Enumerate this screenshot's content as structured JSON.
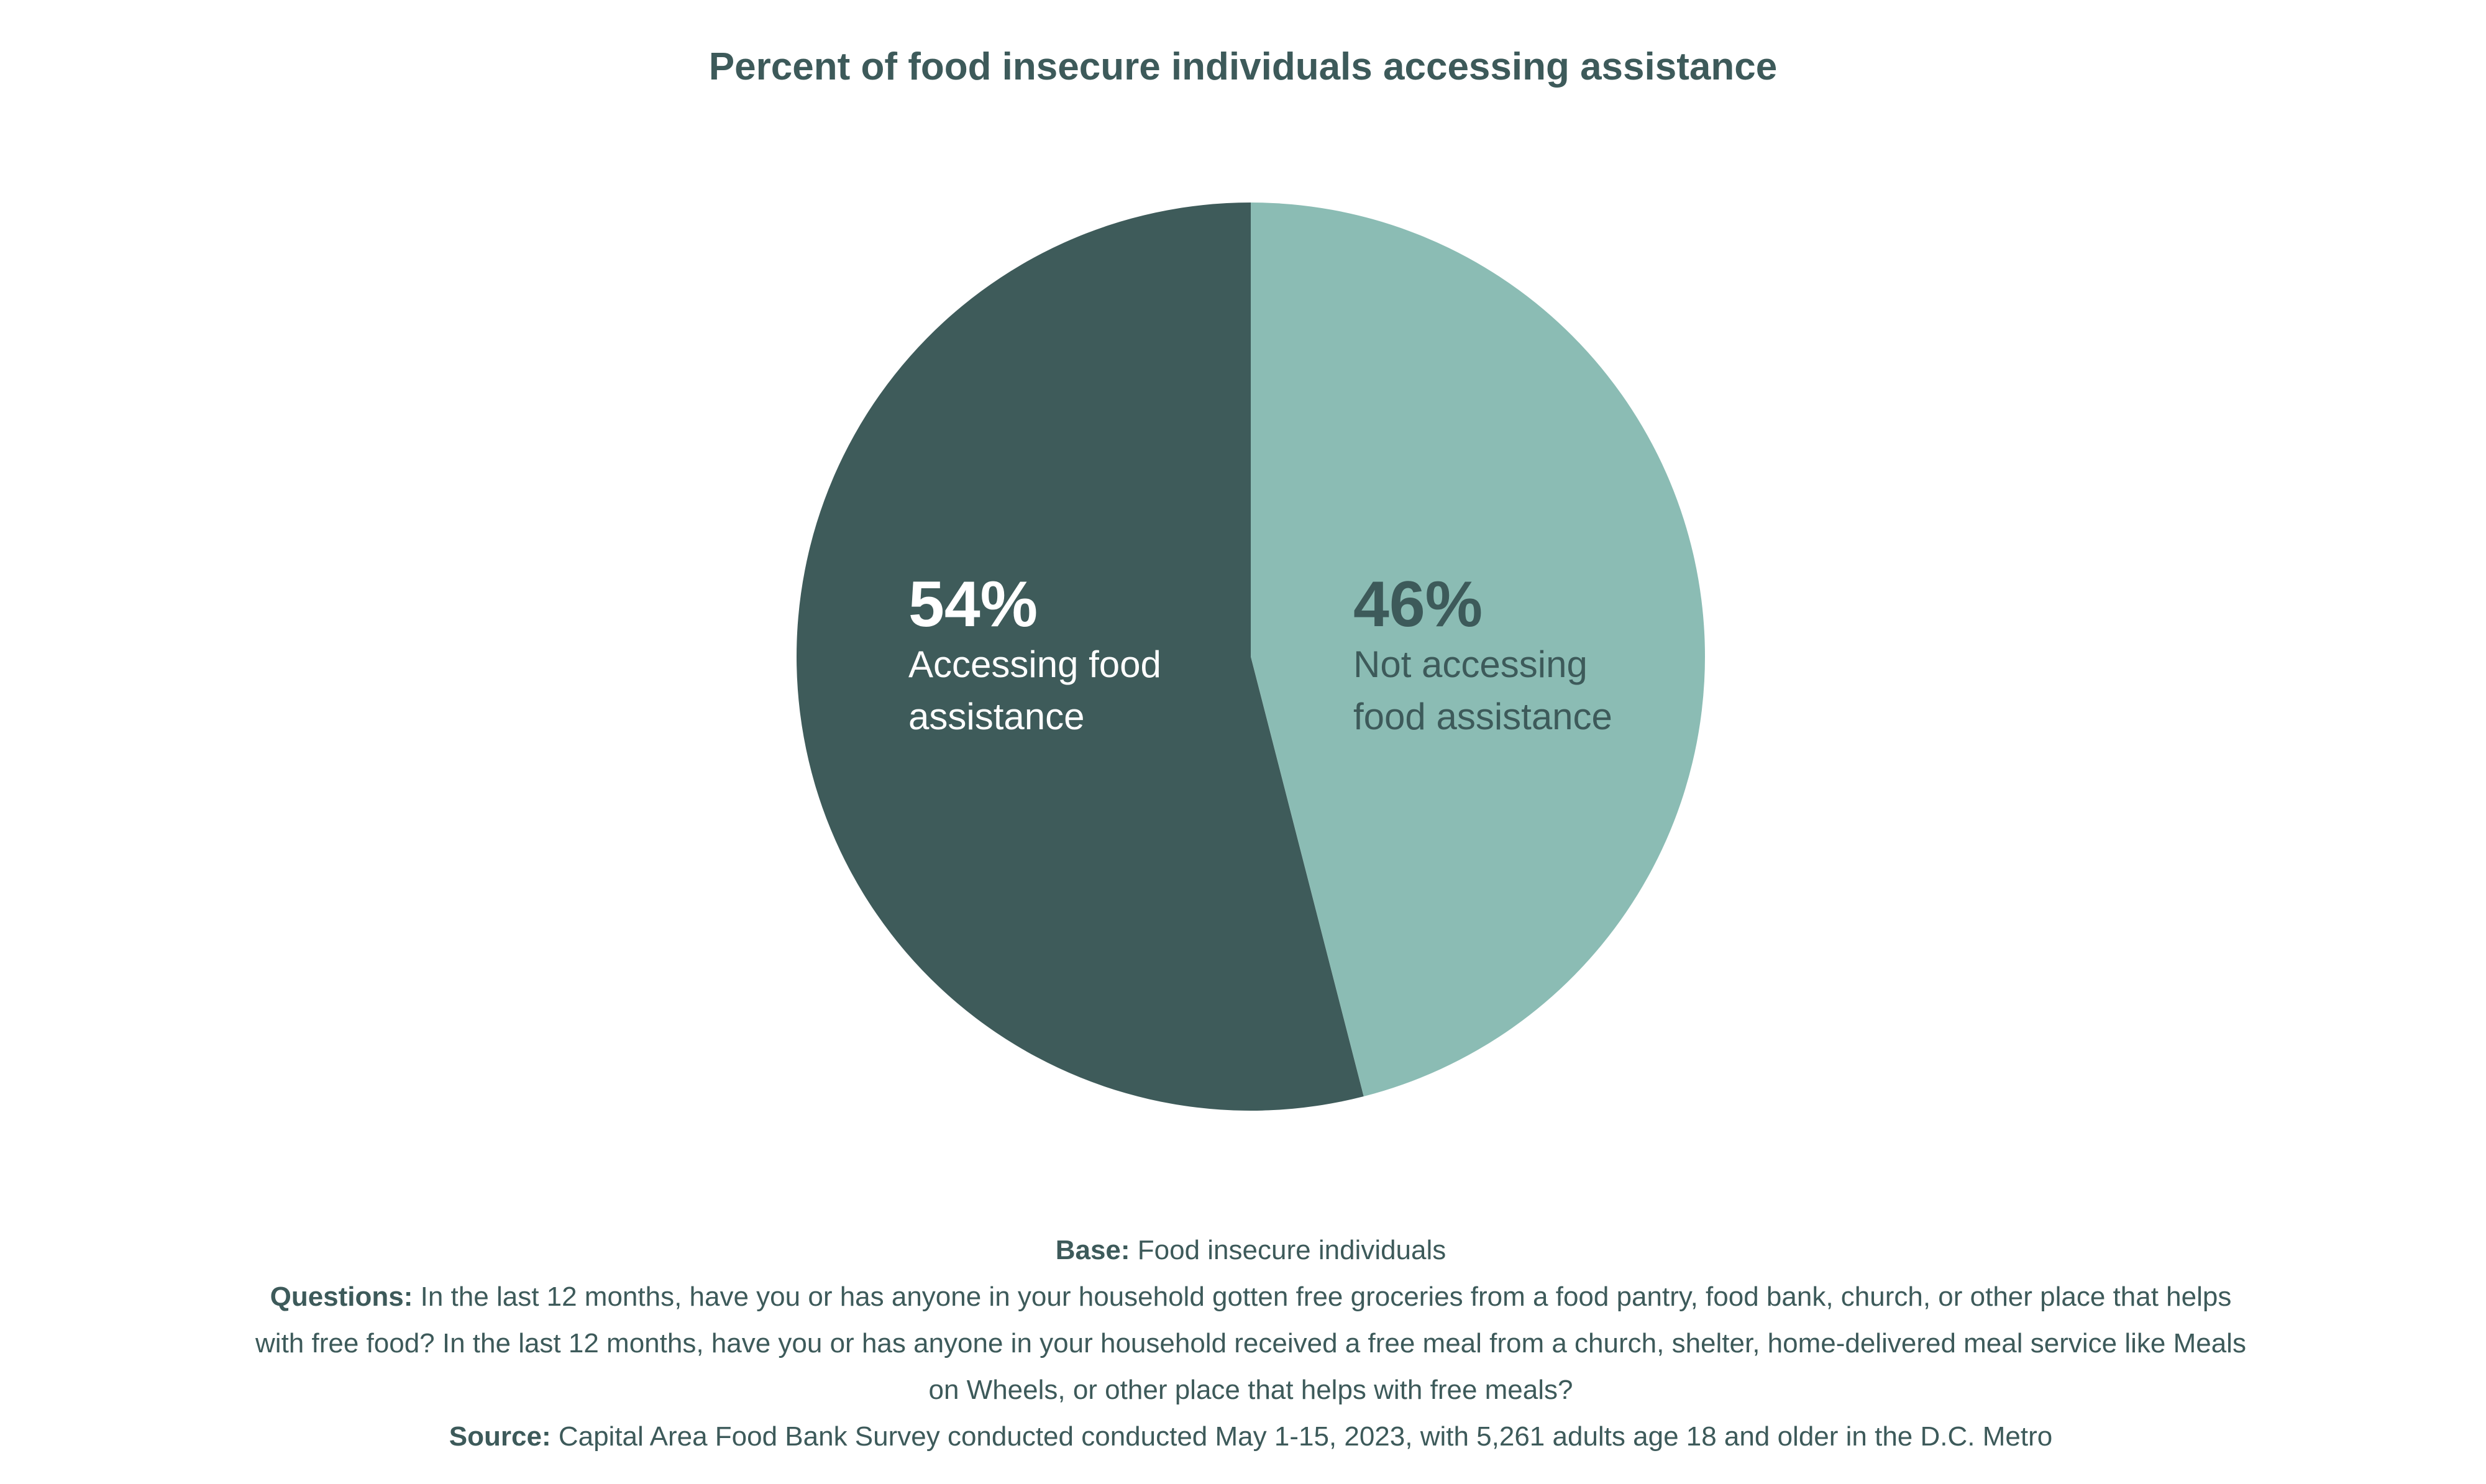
{
  "chart_data": {
    "type": "pie",
    "title": "Percent of food insecure individuals accessing assistance",
    "slices": [
      {
        "label_lines": [
          "Accessing food",
          "assistance"
        ],
        "value": 54,
        "value_label": "54%",
        "color": "#3e5b5a",
        "text_color": "#ffffff"
      },
      {
        "label_lines": [
          "Not accessing",
          "food assistance"
        ],
        "value": 46,
        "value_label": "46%",
        "color": "#8bbcb4",
        "text_color": "#3e5b5a"
      }
    ],
    "start_angle": "top",
    "direction_of_second_slice": "clockwise"
  },
  "footer": {
    "base_label": "Base:",
    "base_text": " Food insecure individuals",
    "questions_label": "Questions:",
    "questions_text": " In the last 12 months, have you or has anyone in your household gotten free groceries from a food pantry, food bank, church, or other place that helps with free food? In the last 12 months, have you or has anyone in your household received a free meal from a church, shelter, home-delivered meal service like Meals on Wheels, or other place that helps with free meals?",
    "source_label": "Source:",
    "source_text": " Capital Area Food Bank Survey conducted conducted May 1-15, 2023, with 5,261 adults age 18 and older in the D.C. Metro"
  }
}
